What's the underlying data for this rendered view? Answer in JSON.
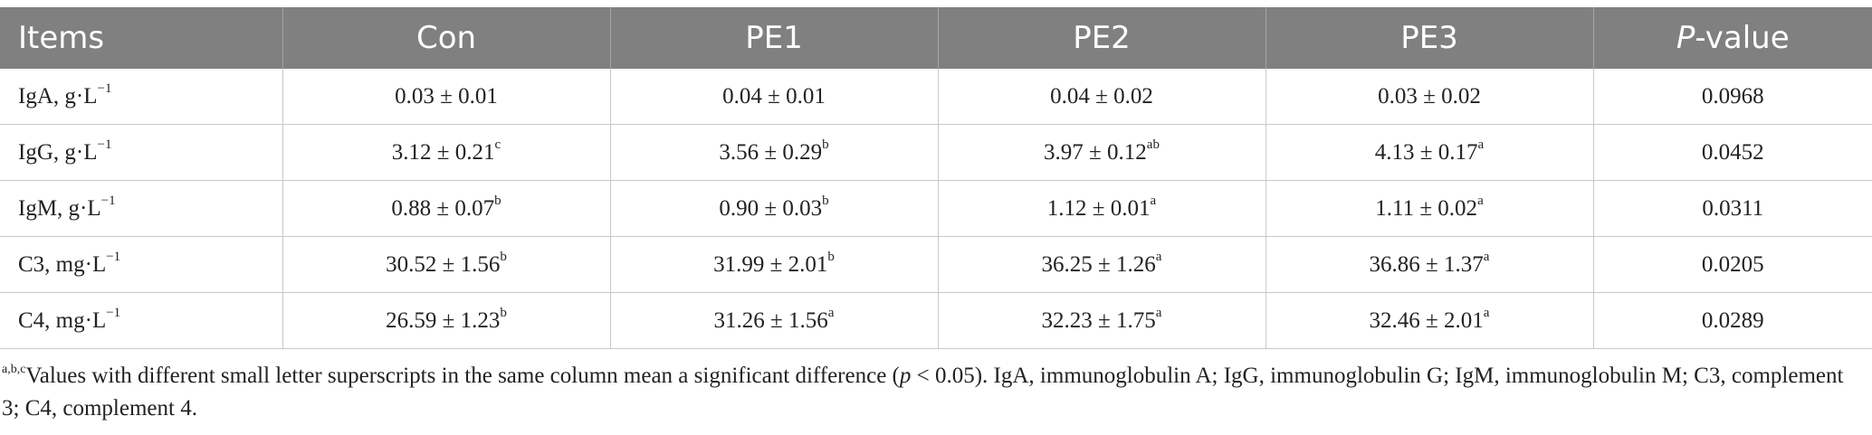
{
  "table": {
    "headers": [
      {
        "main": "Items",
        "suffix": ""
      },
      {
        "main": "Con",
        "suffix": ""
      },
      {
        "main": "PE1",
        "suffix": ""
      },
      {
        "main": "PE2",
        "suffix": ""
      },
      {
        "main": "PE3",
        "suffix": ""
      },
      {
        "main": "P",
        "suffix": "-value"
      }
    ],
    "rows": [
      {
        "item": {
          "name": "IgA, g·L",
          "sup": "−1"
        },
        "values": [
          {
            "v": "0.03 ± 0.01",
            "sup": ""
          },
          {
            "v": "0.04 ± 0.01",
            "sup": ""
          },
          {
            "v": "0.04 ± 0.02",
            "sup": ""
          },
          {
            "v": "0.03 ± 0.02",
            "sup": ""
          }
        ],
        "p": "0.0968"
      },
      {
        "item": {
          "name": "IgG, g·L",
          "sup": "−1"
        },
        "values": [
          {
            "v": "3.12 ± 0.21",
            "sup": "c"
          },
          {
            "v": "3.56 ± 0.29",
            "sup": "b"
          },
          {
            "v": "3.97 ± 0.12",
            "sup": "ab"
          },
          {
            "v": "4.13 ± 0.17",
            "sup": "a"
          }
        ],
        "p": "0.0452"
      },
      {
        "item": {
          "name": "IgM, g·L",
          "sup": "−1"
        },
        "values": [
          {
            "v": "0.88 ± 0.07",
            "sup": "b"
          },
          {
            "v": "0.90 ± 0.03",
            "sup": "b"
          },
          {
            "v": "1.12 ± 0.01",
            "sup": "a"
          },
          {
            "v": "1.11 ± 0.02",
            "sup": "a"
          }
        ],
        "p": "0.0311"
      },
      {
        "item": {
          "name": "C3, mg·L",
          "sup": "−1"
        },
        "values": [
          {
            "v": "30.52 ± 1.56",
            "sup": "b"
          },
          {
            "v": "31.99 ± 2.01",
            "sup": "b"
          },
          {
            "v": "36.25 ± 1.26",
            "sup": "a"
          },
          {
            "v": "36.86 ± 1.37",
            "sup": "a"
          }
        ],
        "p": "0.0205"
      },
      {
        "item": {
          "name": "C4, mg·L",
          "sup": "−1"
        },
        "values": [
          {
            "v": "26.59 ± 1.23",
            "sup": "b"
          },
          {
            "v": "31.26 ± 1.56",
            "sup": "a"
          },
          {
            "v": "32.23 ± 1.75",
            "sup": "a"
          },
          {
            "v": "32.46 ± 2.01",
            "sup": "a"
          }
        ],
        "p": "0.0289"
      }
    ]
  },
  "footnote": {
    "sup": "a,b,c",
    "text1": "Values with different small letter superscripts in the same column mean a significant difference (",
    "p_italic": "p",
    "text2": " < 0.05). IgA, immunoglobulin A; IgG, immunoglobulin G; IgM, immunoglobulin M; C3, complement 3; C4, complement 4."
  }
}
